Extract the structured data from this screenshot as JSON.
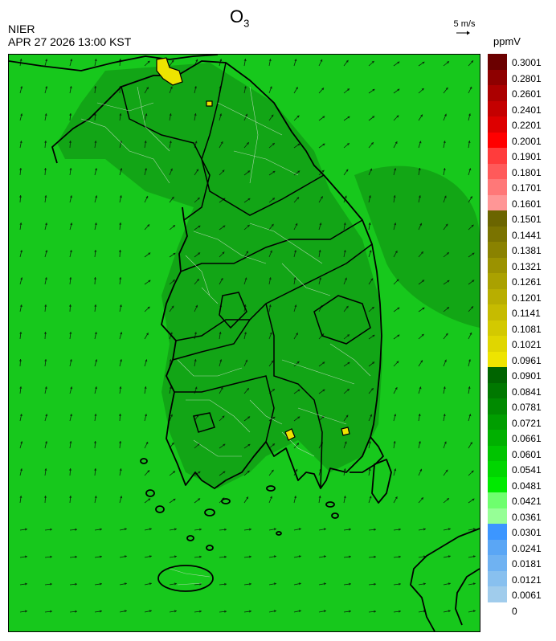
{
  "header": {
    "title": "O",
    "title_subscript": "3",
    "agency": "NIER",
    "datetime": "APR 27 2026 13:00 KST",
    "wind_reference": "5 m/s",
    "unit": "ppmV"
  },
  "legend": {
    "levels": [
      {
        "label": "0.3001",
        "color": "#6b0000"
      },
      {
        "label": "0.2801",
        "color": "#8e0000"
      },
      {
        "label": "0.2601",
        "color": "#ab0000"
      },
      {
        "label": "0.2401",
        "color": "#c40000"
      },
      {
        "label": "0.2201",
        "color": "#dd0000"
      },
      {
        "label": "0.2001",
        "color": "#ff0000"
      },
      {
        "label": "0.1901",
        "color": "#ff3c3c"
      },
      {
        "label": "0.1801",
        "color": "#ff5a5a"
      },
      {
        "label": "0.1701",
        "color": "#ff7878"
      },
      {
        "label": "0.1601",
        "color": "#ff9696"
      },
      {
        "label": "0.1501",
        "color": "#6b6500"
      },
      {
        "label": "0.1441",
        "color": "#7a7300"
      },
      {
        "label": "0.1381",
        "color": "#8a8200"
      },
      {
        "label": "0.1321",
        "color": "#9b9200"
      },
      {
        "label": "0.1261",
        "color": "#aaa100"
      },
      {
        "label": "0.1201",
        "color": "#b8ae00"
      },
      {
        "label": "0.1141",
        "color": "#c6bb00"
      },
      {
        "label": "0.1081",
        "color": "#d3c900"
      },
      {
        "label": "0.1021",
        "color": "#e0d600"
      },
      {
        "label": "0.0961",
        "color": "#eee400"
      },
      {
        "label": "0.0901",
        "color": "#006400"
      },
      {
        "label": "0.0841",
        "color": "#007800"
      },
      {
        "label": "0.0781",
        "color": "#008a00"
      },
      {
        "label": "0.0721",
        "color": "#009e00"
      },
      {
        "label": "0.0661",
        "color": "#00b000"
      },
      {
        "label": "0.0601",
        "color": "#00c400"
      },
      {
        "label": "0.0541",
        "color": "#00d600"
      },
      {
        "label": "0.0481",
        "color": "#00ea00"
      },
      {
        "label": "0.0421",
        "color": "#6eff6e"
      },
      {
        "label": "0.0361",
        "color": "#96ff96"
      },
      {
        "label": "0.0301",
        "color": "#3c96ff"
      },
      {
        "label": "0.0241",
        "color": "#5aa6f5"
      },
      {
        "label": "0.0181",
        "color": "#6fb2f2"
      },
      {
        "label": "0.0121",
        "color": "#88c0ef"
      },
      {
        "label": "0.0061",
        "color": "#a0ccec"
      },
      {
        "label": "0",
        "color": null
      }
    ]
  },
  "map": {
    "background_color": "#17c81c",
    "land_shade_color": "#129a14",
    "northeast_shade_color": "#0e8a10",
    "hotspot_color": "#eee400"
  }
}
